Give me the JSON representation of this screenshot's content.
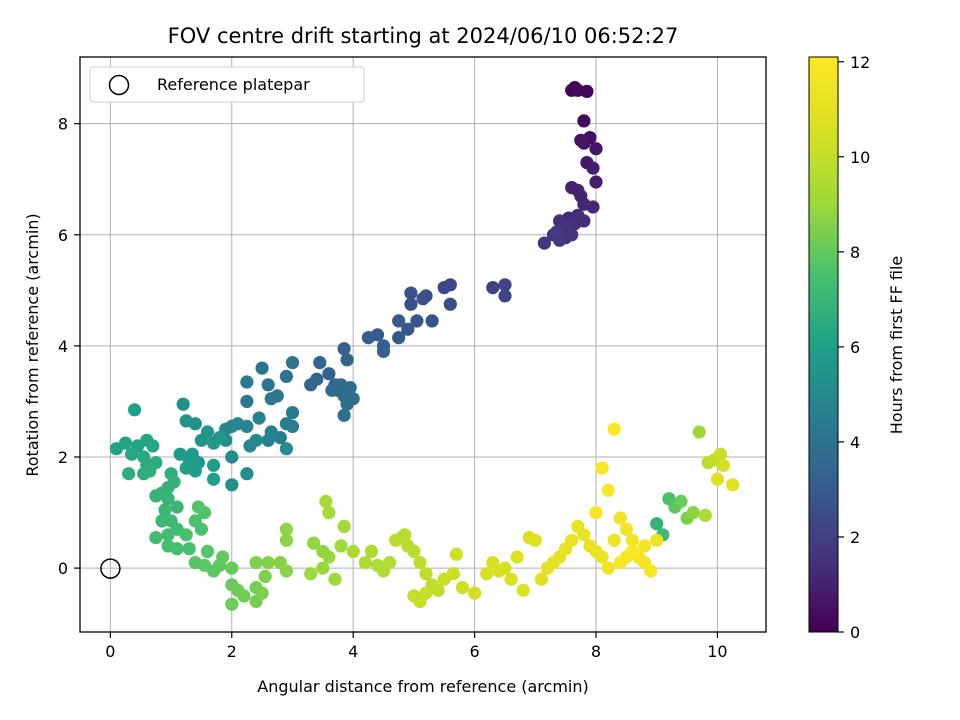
{
  "chart_data": {
    "type": "scatter",
    "title": "FOV centre drift starting at 2024/06/10 06:52:27",
    "xlabel": "Angular distance from reference (arcmin)",
    "ylabel": "Rotation from reference (arcmin)",
    "xlim": [
      -0.5,
      10.8
    ],
    "ylim": [
      -1.15,
      9.2
    ],
    "xticks": [
      "0",
      "2",
      "4",
      "6",
      "8",
      "10"
    ],
    "yticks": [
      "0",
      "2",
      "4",
      "6",
      "8"
    ],
    "grid": true,
    "legend": {
      "placement": "upper-left",
      "entries": [
        "Reference platepar"
      ]
    },
    "reference_point": {
      "x": 0,
      "y": 0
    },
    "colorbar": {
      "label": "Hours from first FF file",
      "range": [
        0,
        12.1
      ],
      "ticks": [
        "0",
        "2",
        "4",
        "6",
        "8",
        "10",
        "12"
      ],
      "colormap": "viridis"
    },
    "points": [
      [
        7.6,
        8.6,
        0.05
      ],
      [
        7.65,
        8.65,
        0.1
      ],
      [
        7.7,
        8.6,
        0.15
      ],
      [
        7.85,
        8.58,
        0.2
      ],
      [
        7.8,
        8.05,
        0.35
      ],
      [
        7.9,
        7.75,
        0.45
      ],
      [
        7.75,
        7.7,
        0.5
      ],
      [
        7.8,
        7.65,
        0.55
      ],
      [
        8.0,
        7.55,
        0.65
      ],
      [
        7.85,
        7.3,
        0.75
      ],
      [
        7.95,
        7.2,
        0.85
      ],
      [
        8.0,
        6.95,
        0.95
      ],
      [
        7.6,
        6.85,
        1.0
      ],
      [
        7.7,
        6.8,
        1.05
      ],
      [
        7.75,
        6.7,
        1.1
      ],
      [
        7.8,
        6.55,
        1.15
      ],
      [
        7.95,
        6.5,
        1.2
      ],
      [
        7.55,
        6.3,
        1.25
      ],
      [
        7.7,
        6.35,
        1.3
      ],
      [
        7.8,
        6.25,
        1.35
      ],
      [
        7.65,
        6.2,
        1.4
      ],
      [
        7.4,
        6.25,
        1.45
      ],
      [
        7.5,
        6.15,
        1.5
      ],
      [
        7.3,
        6.0,
        1.55
      ],
      [
        7.5,
        5.95,
        1.6
      ],
      [
        7.6,
        6.0,
        1.65
      ],
      [
        7.15,
        5.85,
        1.7
      ],
      [
        7.4,
        5.9,
        1.75
      ],
      [
        7.35,
        6.05,
        1.8
      ],
      [
        6.3,
        5.05,
        2.1
      ],
      [
        6.5,
        5.1,
        2.15
      ],
      [
        6.5,
        4.9,
        2.2
      ],
      [
        5.6,
        5.1,
        2.3
      ],
      [
        5.5,
        5.05,
        2.35
      ],
      [
        5.6,
        4.75,
        2.4
      ],
      [
        5.2,
        4.9,
        2.5
      ],
      [
        5.15,
        4.85,
        2.55
      ],
      [
        4.95,
        4.75,
        2.6
      ],
      [
        4.95,
        4.95,
        2.65
      ],
      [
        5.3,
        4.45,
        2.75
      ],
      [
        5.05,
        4.45,
        2.8
      ],
      [
        4.9,
        4.3,
        2.85
      ],
      [
        4.75,
        4.45,
        2.9
      ],
      [
        4.75,
        4.15,
        2.95
      ],
      [
        4.4,
        4.2,
        3.0
      ],
      [
        4.25,
        4.15,
        3.05
      ],
      [
        4.5,
        4.0,
        3.1
      ],
      [
        4.5,
        3.9,
        3.15
      ],
      [
        3.85,
        3.95,
        3.25
      ],
      [
        3.9,
        3.75,
        3.3
      ],
      [
        3.6,
        3.5,
        3.35
      ],
      [
        3.45,
        3.7,
        3.4
      ],
      [
        3.4,
        3.4,
        3.45
      ],
      [
        3.3,
        3.3,
        3.5
      ],
      [
        3.7,
        3.3,
        3.55
      ],
      [
        3.75,
        3.2,
        3.6
      ],
      [
        3.8,
        3.3,
        3.65
      ],
      [
        3.65,
        3.2,
        3.7
      ],
      [
        3.85,
        3.1,
        3.75
      ],
      [
        3.95,
        3.25,
        3.8
      ],
      [
        4.0,
        3.05,
        3.85
      ],
      [
        3.9,
        2.95,
        3.9
      ],
      [
        3.85,
        2.75,
        3.95
      ],
      [
        3.0,
        3.7,
        4.0
      ],
      [
        2.9,
        3.45,
        4.05
      ],
      [
        2.5,
        3.6,
        4.1
      ],
      [
        2.6,
        3.3,
        4.15
      ],
      [
        2.75,
        3.1,
        4.2
      ],
      [
        2.65,
        3.05,
        4.25
      ],
      [
        2.25,
        3.35,
        4.3
      ],
      [
        2.25,
        3.0,
        4.35
      ],
      [
        3.0,
        2.8,
        4.4
      ],
      [
        3.0,
        2.55,
        4.45
      ],
      [
        2.9,
        2.6,
        4.5
      ],
      [
        2.8,
        2.35,
        4.55
      ],
      [
        2.6,
        2.3,
        4.6
      ],
      [
        2.65,
        2.45,
        4.65
      ],
      [
        2.45,
        2.7,
        4.7
      ],
      [
        2.25,
        2.55,
        4.75
      ],
      [
        2.1,
        2.6,
        4.8
      ],
      [
        2.0,
        2.55,
        4.85
      ],
      [
        1.9,
        2.5,
        4.9
      ],
      [
        2.3,
        2.2,
        4.95
      ],
      [
        2.4,
        2.3,
        5.0
      ],
      [
        2.9,
        2.15,
        5.05
      ],
      [
        2.0,
        2.0,
        5.1
      ],
      [
        1.9,
        2.3,
        5.15
      ],
      [
        2.25,
        1.7,
        5.2
      ],
      [
        2.0,
        1.5,
        5.25
      ],
      [
        1.4,
        2.6,
        5.3
      ],
      [
        1.2,
        2.95,
        5.35
      ],
      [
        1.25,
        2.65,
        5.4
      ],
      [
        1.6,
        2.45,
        5.45
      ],
      [
        1.5,
        2.3,
        5.5
      ],
      [
        1.7,
        2.25,
        5.55
      ],
      [
        1.8,
        2.35,
        5.6
      ],
      [
        1.35,
        2.05,
        5.65
      ],
      [
        1.45,
        1.9,
        5.7
      ],
      [
        1.15,
        2.05,
        5.75
      ],
      [
        1.3,
        1.95,
        5.8
      ],
      [
        1.4,
        1.75,
        5.85
      ],
      [
        1.25,
        1.8,
        5.9
      ],
      [
        1.7,
        1.85,
        5.95
      ],
      [
        1.7,
        1.6,
        6.0
      ],
      [
        0.4,
        2.85,
        6.05
      ],
      [
        0.1,
        2.15,
        6.1
      ],
      [
        0.25,
        2.25,
        6.15
      ],
      [
        0.45,
        2.2,
        6.2
      ],
      [
        0.6,
        2.3,
        6.25
      ],
      [
        0.7,
        2.2,
        6.3
      ],
      [
        0.35,
        2.05,
        6.35
      ],
      [
        0.55,
        2.0,
        6.4
      ],
      [
        0.6,
        1.85,
        6.45
      ],
      [
        0.75,
        1.9,
        6.5
      ],
      [
        0.3,
        1.7,
        6.55
      ],
      [
        0.55,
        1.7,
        6.6
      ],
      [
        0.65,
        1.75,
        6.65
      ],
      [
        1.0,
        1.7,
        6.7
      ],
      [
        1.05,
        1.55,
        6.75
      ],
      [
        0.95,
        1.45,
        6.8
      ],
      [
        0.85,
        1.35,
        6.85
      ],
      [
        0.75,
        1.3,
        6.9
      ],
      [
        0.95,
        1.25,
        6.95
      ],
      [
        1.1,
        1.1,
        7.0
      ],
      [
        0.9,
        1.05,
        7.05
      ],
      [
        0.85,
        0.85,
        7.1
      ],
      [
        1.0,
        0.85,
        7.15
      ],
      [
        1.1,
        0.7,
        7.2
      ],
      [
        0.95,
        0.6,
        7.25
      ],
      [
        0.75,
        0.55,
        7.3
      ],
      [
        0.95,
        0.4,
        7.35
      ],
      [
        1.1,
        0.35,
        7.4
      ],
      [
        1.3,
        0.35,
        7.45
      ],
      [
        1.25,
        0.6,
        7.5
      ],
      [
        1.5,
        0.7,
        7.55
      ],
      [
        1.4,
        0.85,
        7.6
      ],
      [
        1.55,
        1.0,
        7.65
      ],
      [
        1.45,
        1.1,
        7.7
      ],
      [
        1.6,
        0.3,
        7.75
      ],
      [
        1.4,
        0.1,
        7.8
      ],
      [
        1.55,
        0.05,
        7.85
      ],
      [
        1.7,
        -0.05,
        7.9
      ],
      [
        1.8,
        0.05,
        7.95
      ],
      [
        1.85,
        0.2,
        8.0
      ],
      [
        2.0,
        0.0,
        8.05
      ],
      [
        2.0,
        -0.3,
        8.1
      ],
      [
        2.1,
        -0.4,
        8.15
      ],
      [
        2.0,
        -0.65,
        8.2
      ],
      [
        2.2,
        -0.5,
        8.25
      ],
      [
        2.4,
        -0.35,
        8.3
      ],
      [
        2.4,
        -0.6,
        8.35
      ],
      [
        2.5,
        -0.45,
        8.4
      ],
      [
        2.55,
        -0.15,
        8.45
      ],
      [
        2.4,
        0.1,
        8.5
      ],
      [
        2.6,
        0.1,
        8.55
      ],
      [
        2.8,
        0.1,
        8.6
      ],
      [
        2.9,
        -0.05,
        8.65
      ],
      [
        2.9,
        0.5,
        8.7
      ],
      [
        2.9,
        0.7,
        8.75
      ],
      [
        3.35,
        0.45,
        8.8
      ],
      [
        3.5,
        0.3,
        8.85
      ],
      [
        3.6,
        0.2,
        8.9
      ],
      [
        3.5,
        0.0,
        8.95
      ],
      [
        3.3,
        -0.1,
        9.0
      ],
      [
        3.7,
        -0.2,
        9.05
      ],
      [
        3.8,
        0.4,
        9.1
      ],
      [
        3.85,
        0.75,
        9.15
      ],
      [
        3.55,
        1.2,
        9.2
      ],
      [
        3.6,
        1.0,
        9.25
      ],
      [
        4.0,
        0.3,
        9.3
      ],
      [
        4.2,
        0.1,
        9.35
      ],
      [
        4.3,
        0.3,
        9.4
      ],
      [
        4.4,
        0.05,
        9.45
      ],
      [
        4.5,
        -0.05,
        9.5
      ],
      [
        4.6,
        0.1,
        9.55
      ],
      [
        4.7,
        0.5,
        9.6
      ],
      [
        4.8,
        0.55,
        9.65
      ],
      [
        4.85,
        0.6,
        9.7
      ],
      [
        4.9,
        0.4,
        9.75
      ],
      [
        5.0,
        0.3,
        9.8
      ],
      [
        5.1,
        0.1,
        9.85
      ],
      [
        5.2,
        -0.1,
        9.9
      ],
      [
        5.3,
        -0.3,
        9.95
      ],
      [
        5.4,
        -0.4,
        10.0
      ],
      [
        5.0,
        -0.5,
        10.05
      ],
      [
        5.1,
        -0.6,
        10.1
      ],
      [
        5.2,
        -0.45,
        10.15
      ],
      [
        5.5,
        -0.2,
        10.2
      ],
      [
        5.65,
        -0.1,
        10.25
      ],
      [
        5.7,
        0.25,
        10.3
      ],
      [
        5.8,
        -0.35,
        10.35
      ],
      [
        6.0,
        -0.45,
        10.4
      ],
      [
        6.2,
        -0.1,
        10.45
      ],
      [
        6.3,
        0.1,
        10.5
      ],
      [
        6.4,
        -0.05,
        10.55
      ],
      [
        6.5,
        0.0,
        10.6
      ],
      [
        6.6,
        -0.2,
        10.65
      ],
      [
        6.7,
        0.2,
        10.7
      ],
      [
        6.8,
        -0.4,
        10.75
      ],
      [
        6.9,
        0.55,
        10.8
      ],
      [
        7.0,
        0.5,
        10.85
      ],
      [
        7.1,
        -0.2,
        10.9
      ],
      [
        7.2,
        0.0,
        10.95
      ],
      [
        7.3,
        0.1,
        11.0
      ],
      [
        7.4,
        0.2,
        11.05
      ],
      [
        7.5,
        0.35,
        11.1
      ],
      [
        7.6,
        0.5,
        11.15
      ],
      [
        7.7,
        0.75,
        11.2
      ],
      [
        7.8,
        0.6,
        11.25
      ],
      [
        7.9,
        0.4,
        11.3
      ],
      [
        8.0,
        0.3,
        11.35
      ],
      [
        8.1,
        0.2,
        11.4
      ],
      [
        8.2,
        0.0,
        11.45
      ],
      [
        8.3,
        0.5,
        11.5
      ],
      [
        8.4,
        0.9,
        11.55
      ],
      [
        8.5,
        0.7,
        11.6
      ],
      [
        8.6,
        0.5,
        11.65
      ],
      [
        8.7,
        0.2,
        11.7
      ],
      [
        8.8,
        0.1,
        11.75
      ],
      [
        8.9,
        -0.05,
        11.8
      ],
      [
        8.0,
        1.0,
        11.85
      ],
      [
        8.1,
        1.8,
        11.9
      ],
      [
        8.2,
        1.4,
        11.95
      ],
      [
        8.3,
        2.5,
        12.0
      ],
      [
        9.0,
        0.8,
        6.9
      ],
      [
        9.1,
        0.6,
        7.2
      ],
      [
        9.2,
        1.25,
        7.5
      ],
      [
        9.3,
        1.1,
        7.8
      ],
      [
        9.4,
        1.2,
        8.1
      ],
      [
        9.5,
        0.9,
        8.4
      ],
      [
        9.6,
        1.0,
        8.7
      ],
      [
        9.7,
        2.45,
        9.0
      ],
      [
        9.8,
        0.95,
        9.3
      ],
      [
        9.85,
        1.9,
        9.6
      ],
      [
        9.95,
        1.95,
        9.9
      ],
      [
        10.05,
        2.05,
        10.2
      ],
      [
        10.1,
        1.85,
        10.5
      ],
      [
        10.0,
        1.6,
        10.8
      ],
      [
        10.25,
        1.5,
        11.1
      ],
      [
        9.0,
        0.5,
        11.4
      ],
      [
        8.8,
        0.4,
        11.7
      ],
      [
        8.6,
        0.3,
        12.0
      ],
      [
        8.5,
        0.2,
        11.9
      ],
      [
        8.4,
        0.1,
        11.85
      ]
    ]
  }
}
